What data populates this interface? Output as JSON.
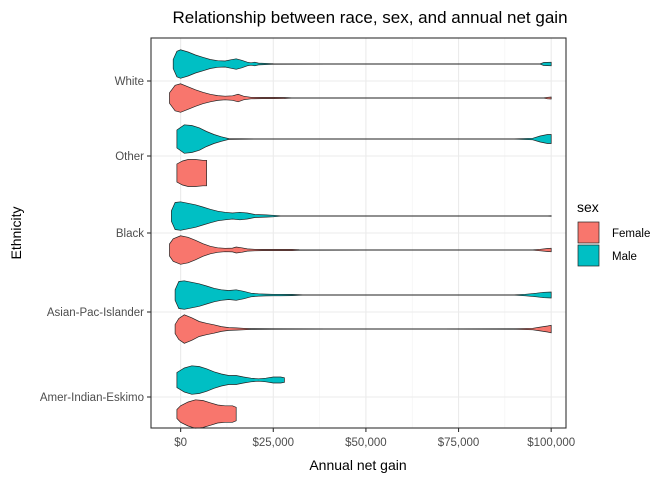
{
  "chart_data": {
    "type": "violin",
    "orientation": "horizontal",
    "title": "Relationship between race, sex, and annual net gain",
    "xlabel": "Annual net gain",
    "ylabel": "Ethnicity",
    "xlim": [
      -8000,
      104000
    ],
    "x_ticks": [
      0,
      25000,
      50000,
      75000,
      100000
    ],
    "x_tick_labels": [
      "$0",
      "$25,000",
      "$50,000",
      "$75,000",
      "$100,000"
    ],
    "categories": [
      "Amer-Indian-Eskimo",
      "Asian-Pac-Islander",
      "Black",
      "Other",
      "White"
    ],
    "grid": true,
    "legend": {
      "title": "sex",
      "position": "right",
      "entries": [
        {
          "label": "Female",
          "color": "#F8766D"
        },
        {
          "label": "Male",
          "color": "#00BFC4"
        }
      ]
    },
    "series": [
      {
        "label": "Female",
        "color": "#F8766D",
        "violins": [
          {
            "category": "Amer-Indian-Eskimo",
            "profile": [
              [
                -1000,
                0.3
              ],
              [
                0,
                0.55
              ],
              [
                2000,
                0.8
              ],
              [
                4000,
                0.95
              ],
              [
                6000,
                0.9
              ],
              [
                8000,
                0.75
              ],
              [
                10000,
                0.6
              ],
              [
                12000,
                0.55
              ],
              [
                14000,
                0.55
              ],
              [
                15000,
                0.45
              ]
            ]
          },
          {
            "category": "Asian-Pac-Islander",
            "profile": [
              [
                -1500,
                0.3
              ],
              [
                -500,
                0.7
              ],
              [
                1000,
                0.95
              ],
              [
                3000,
                0.75
              ],
              [
                5000,
                0.5
              ],
              [
                7000,
                0.38
              ],
              [
                9000,
                0.28
              ],
              [
                11000,
                0.16
              ],
              [
                13000,
                0.09
              ],
              [
                15000,
                0.07
              ],
              [
                17000,
                0.05
              ],
              [
                19000,
                0.03
              ],
              [
                25000,
                0.02
              ],
              [
                40000,
                0.015
              ],
              [
                70000,
                0.015
              ],
              [
                90000,
                0.02
              ],
              [
                95000,
                0.05
              ],
              [
                97000,
                0.13
              ],
              [
                99000,
                0.2
              ],
              [
                100000,
                0.25
              ]
            ]
          },
          {
            "category": "Black",
            "profile": [
              [
                -3000,
                0.4
              ],
              [
                -2000,
                0.75
              ],
              [
                0,
                0.95
              ],
              [
                2000,
                0.85
              ],
              [
                4000,
                0.65
              ],
              [
                6000,
                0.42
              ],
              [
                8000,
                0.25
              ],
              [
                10000,
                0.15
              ],
              [
                12000,
                0.11
              ],
              [
                14000,
                0.13
              ],
              [
                15000,
                0.2
              ],
              [
                16500,
                0.15
              ],
              [
                18000,
                0.07
              ],
              [
                20000,
                0.05
              ],
              [
                22000,
                0.04
              ],
              [
                25000,
                0.04
              ],
              [
                30000,
                0.04
              ],
              [
                32000,
                0.02
              ],
              [
                50000,
                0.015
              ],
              [
                95000,
                0.015
              ],
              [
                97000,
                0.05
              ],
              [
                99000,
                0.1
              ],
              [
                100000,
                0.12
              ]
            ]
          },
          {
            "category": "White",
            "profile": [
              [
                -3000,
                0.35
              ],
              [
                -1500,
                0.85
              ],
              [
                0,
                0.95
              ],
              [
                2000,
                0.75
              ],
              [
                4000,
                0.55
              ],
              [
                6000,
                0.38
              ],
              [
                8000,
                0.25
              ],
              [
                10000,
                0.16
              ],
              [
                12000,
                0.12
              ],
              [
                14000,
                0.15
              ],
              [
                15500,
                0.25
              ],
              [
                17000,
                0.12
              ],
              [
                19000,
                0.05
              ],
              [
                22000,
                0.04
              ],
              [
                25000,
                0.04
              ],
              [
                28000,
                0.03
              ],
              [
                30000,
                0.015
              ],
              [
                60000,
                0.015
              ],
              [
                98000,
                0.015
              ],
              [
                99000,
                0.05
              ],
              [
                100000,
                0.07
              ]
            ]
          },
          {
            "category": "Other",
            "profile": [
              [
                -1000,
                0.6
              ],
              [
                500,
                0.8
              ],
              [
                2000,
                0.9
              ],
              [
                4000,
                0.9
              ],
              [
                6000,
                0.85
              ],
              [
                7000,
                0.85
              ]
            ]
          }
        ]
      },
      {
        "label": "Male",
        "color": "#00BFC4",
        "violins": [
          {
            "category": "Amer-Indian-Eskimo",
            "profile": [
              [
                -1000,
                0.5
              ],
              [
                1000,
                0.8
              ],
              [
                3000,
                0.95
              ],
              [
                5000,
                0.9
              ],
              [
                7000,
                0.75
              ],
              [
                9000,
                0.55
              ],
              [
                11000,
                0.4
              ],
              [
                13000,
                0.3
              ],
              [
                15000,
                0.3
              ],
              [
                17000,
                0.2
              ],
              [
                19000,
                0.12
              ],
              [
                21000,
                0.08
              ],
              [
                23000,
                0.12
              ],
              [
                25000,
                0.2
              ],
              [
                27000,
                0.2
              ],
              [
                28000,
                0.15
              ]
            ]
          },
          {
            "category": "Asian-Pac-Islander",
            "profile": [
              [
                -1500,
                0.35
              ],
              [
                -500,
                0.9
              ],
              [
                1000,
                0.95
              ],
              [
                3000,
                0.85
              ],
              [
                5000,
                0.75
              ],
              [
                7000,
                0.6
              ],
              [
                9000,
                0.45
              ],
              [
                11000,
                0.35
              ],
              [
                13000,
                0.3
              ],
              [
                15000,
                0.35
              ],
              [
                17000,
                0.25
              ],
              [
                19000,
                0.12
              ],
              [
                21000,
                0.08
              ],
              [
                23000,
                0.06
              ],
              [
                25000,
                0.05
              ],
              [
                27000,
                0.05
              ],
              [
                30000,
                0.04
              ],
              [
                33000,
                0.015
              ],
              [
                90000,
                0.015
              ],
              [
                93000,
                0.05
              ],
              [
                96000,
                0.12
              ],
              [
                98000,
                0.18
              ],
              [
                100000,
                0.2
              ]
            ]
          },
          {
            "category": "Black",
            "profile": [
              [
                -2500,
                0.35
              ],
              [
                -1500,
                0.9
              ],
              [
                0,
                0.95
              ],
              [
                2000,
                0.85
              ],
              [
                4000,
                0.75
              ],
              [
                6000,
                0.6
              ],
              [
                8000,
                0.45
              ],
              [
                10000,
                0.32
              ],
              [
                12000,
                0.25
              ],
              [
                14000,
                0.2
              ],
              [
                16000,
                0.25
              ],
              [
                18000,
                0.2
              ],
              [
                20000,
                0.1
              ],
              [
                23000,
                0.07
              ],
              [
                25000,
                0.05
              ],
              [
                27000,
                0.015
              ],
              [
                99000,
                0.015
              ],
              [
                100000,
                0.02
              ]
            ]
          },
          {
            "category": "White",
            "profile": [
              [
                -2000,
                0.3
              ],
              [
                -1000,
                0.85
              ],
              [
                0,
                0.95
              ],
              [
                2000,
                0.8
              ],
              [
                4000,
                0.6
              ],
              [
                6000,
                0.45
              ],
              [
                8000,
                0.3
              ],
              [
                10000,
                0.22
              ],
              [
                12000,
                0.2
              ],
              [
                13500,
                0.28
              ],
              [
                15000,
                0.35
              ],
              [
                16500,
                0.25
              ],
              [
                18000,
                0.12
              ],
              [
                19000,
                0.08
              ],
              [
                20000,
                0.12
              ],
              [
                21000,
                0.06
              ],
              [
                25000,
                0.02
              ],
              [
                40000,
                0.015
              ],
              [
                97000,
                0.015
              ],
              [
                98000,
                0.1
              ],
              [
                100000,
                0.12
              ]
            ]
          },
          {
            "category": "Other",
            "profile": [
              [
                -1000,
                0.6
              ],
              [
                1000,
                0.95
              ],
              [
                3000,
                0.9
              ],
              [
                5000,
                0.75
              ],
              [
                7000,
                0.5
              ],
              [
                9000,
                0.3
              ],
              [
                11000,
                0.15
              ],
              [
                13000,
                0.03
              ],
              [
                20000,
                0.015
              ],
              [
                90000,
                0.015
              ],
              [
                95000,
                0.05
              ],
              [
                97000,
                0.2
              ],
              [
                99000,
                0.3
              ],
              [
                100000,
                0.3
              ]
            ]
          }
        ]
      }
    ]
  }
}
